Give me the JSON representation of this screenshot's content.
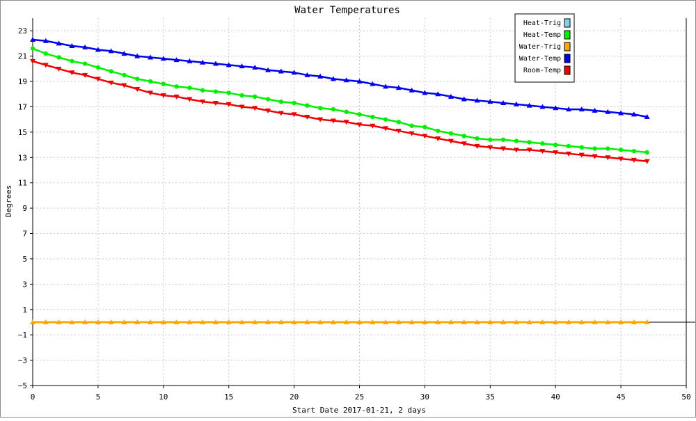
{
  "chart_data": {
    "type": "line",
    "title": "Water Temperatures",
    "xlabel": "Start Date 2017-01-21, 2 days",
    "ylabel": "Degrees",
    "xlim": [
      0,
      50
    ],
    "ylim": [
      -5,
      24
    ],
    "x_ticks": [
      0,
      5,
      10,
      15,
      20,
      25,
      30,
      35,
      40,
      45,
      50
    ],
    "y_ticks": [
      -5,
      -3,
      -1,
      1,
      3,
      5,
      7,
      9,
      11,
      13,
      15,
      17,
      19,
      21,
      23
    ],
    "grid": true,
    "legend_position": "top-right",
    "x": [
      0,
      1,
      2,
      3,
      4,
      5,
      6,
      7,
      8,
      9,
      10,
      11,
      12,
      13,
      14,
      15,
      16,
      17,
      18,
      19,
      20,
      21,
      22,
      23,
      24,
      25,
      26,
      27,
      28,
      29,
      30,
      31,
      32,
      33,
      34,
      35,
      36,
      37,
      38,
      39,
      40,
      41,
      42,
      43,
      44,
      45,
      46,
      47
    ],
    "series": [
      {
        "name": "Heat-Trig",
        "color": "#87ceeb",
        "marker": "none",
        "values": [
          0,
          0,
          0,
          0,
          0,
          0,
          0,
          0,
          0,
          0,
          0,
          0,
          0,
          0,
          0,
          0,
          0,
          0,
          0,
          0,
          0,
          0,
          0,
          0,
          0,
          0,
          0,
          0,
          0,
          0,
          0,
          0,
          0,
          0,
          0,
          0,
          0,
          0,
          0,
          0,
          0,
          0,
          0,
          0,
          0,
          0,
          0,
          0
        ]
      },
      {
        "name": "Heat-Temp",
        "color": "#00ee00",
        "marker": "circle",
        "values": [
          21.6,
          21.2,
          20.9,
          20.6,
          20.4,
          20.1,
          19.8,
          19.5,
          19.2,
          19.0,
          18.8,
          18.6,
          18.5,
          18.3,
          18.2,
          18.1,
          17.9,
          17.8,
          17.6,
          17.4,
          17.3,
          17.1,
          16.9,
          16.8,
          16.6,
          16.4,
          16.2,
          16.0,
          15.8,
          15.5,
          15.4,
          15.1,
          14.9,
          14.7,
          14.5,
          14.4,
          14.4,
          14.3,
          14.2,
          14.1,
          14.0,
          13.9,
          13.8,
          13.7,
          13.7,
          13.6,
          13.5,
          13.4
        ]
      },
      {
        "name": "Water-Trig",
        "color": "#ffa500",
        "marker": "triangle-up",
        "values": [
          0,
          0,
          0,
          0,
          0,
          0,
          0,
          0,
          0,
          0,
          0,
          0,
          0,
          0,
          0,
          0,
          0,
          0,
          0,
          0,
          0,
          0,
          0,
          0,
          0,
          0,
          0,
          0,
          0,
          0,
          0,
          0,
          0,
          0,
          0,
          0,
          0,
          0,
          0,
          0,
          0,
          0,
          0,
          0,
          0,
          0,
          0,
          0
        ]
      },
      {
        "name": "Water-Temp",
        "color": "#0000ee",
        "marker": "triangle-up",
        "values": [
          22.3,
          22.2,
          22.0,
          21.8,
          21.7,
          21.5,
          21.4,
          21.2,
          21.0,
          20.9,
          20.8,
          20.7,
          20.6,
          20.5,
          20.4,
          20.3,
          20.2,
          20.1,
          19.9,
          19.8,
          19.7,
          19.5,
          19.4,
          19.2,
          19.1,
          19.0,
          18.8,
          18.6,
          18.5,
          18.3,
          18.1,
          18.0,
          17.8,
          17.6,
          17.5,
          17.4,
          17.3,
          17.2,
          17.1,
          17.0,
          16.9,
          16.8,
          16.8,
          16.7,
          16.6,
          16.5,
          16.4,
          16.2
        ]
      },
      {
        "name": "Room-Temp",
        "color": "#ee0000",
        "marker": "triangle-down",
        "values": [
          20.6,
          20.3,
          20.0,
          19.7,
          19.5,
          19.2,
          18.9,
          18.7,
          18.4,
          18.1,
          17.9,
          17.8,
          17.6,
          17.4,
          17.3,
          17.2,
          17.0,
          16.9,
          16.7,
          16.5,
          16.4,
          16.2,
          16.0,
          15.9,
          15.8,
          15.6,
          15.5,
          15.3,
          15.1,
          14.9,
          14.7,
          14.5,
          14.3,
          14.1,
          13.9,
          13.8,
          13.7,
          13.6,
          13.6,
          13.5,
          13.4,
          13.3,
          13.2,
          13.1,
          13.0,
          12.9,
          12.8,
          12.7
        ]
      }
    ]
  }
}
